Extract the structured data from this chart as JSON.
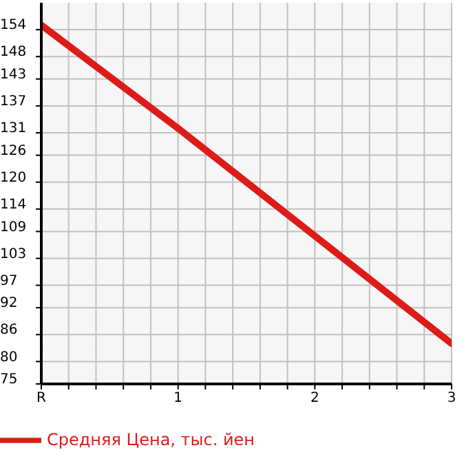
{
  "chart_data": {
    "type": "line",
    "categories": [
      "R",
      "1",
      "2",
      "3"
    ],
    "series": [
      {
        "name": "Средняя Цена, тыс. йен",
        "color": "#dd1c1a",
        "values": [
          155,
          132,
          108,
          84
        ]
      }
    ],
    "ylim": [
      75,
      160
    ],
    "yticks": [
      75,
      80,
      86,
      92,
      97,
      103,
      109,
      114,
      120,
      126,
      131,
      137,
      143,
      148,
      154
    ],
    "grid": true,
    "legend": "bottom",
    "marker": "none",
    "line_style": "solid"
  }
}
